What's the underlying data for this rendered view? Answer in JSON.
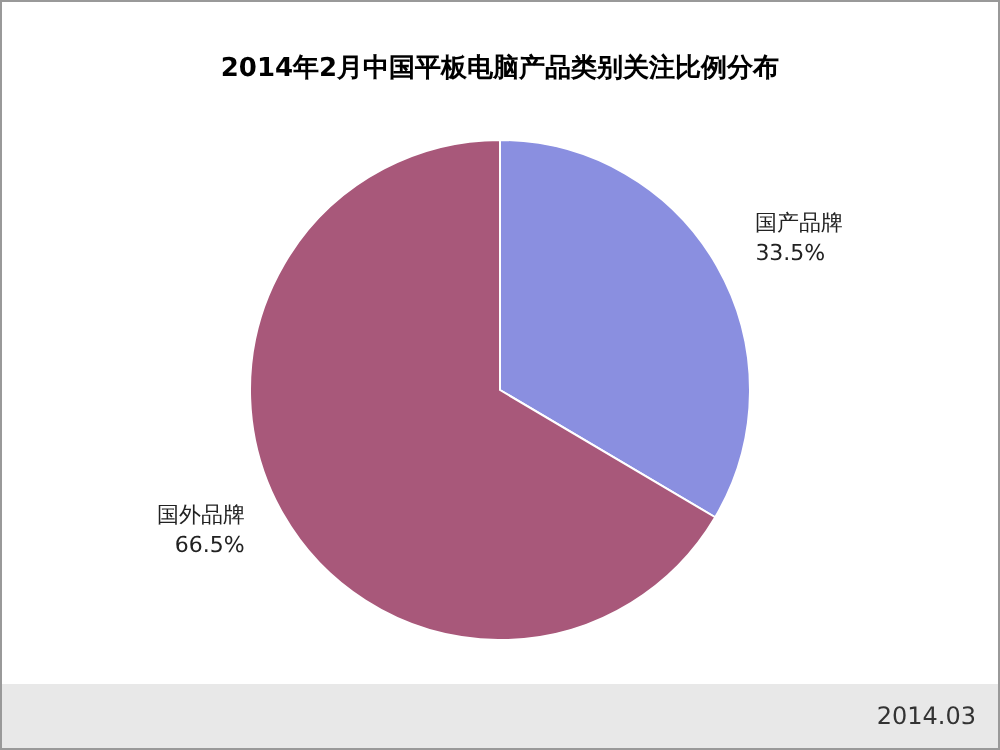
{
  "chart_data": {
    "type": "pie",
    "title": "2014年2月中国平板电脑产品类别关注比例分布",
    "categories": [
      "国产品牌",
      "国外品牌"
    ],
    "values": [
      33.5,
      66.5
    ],
    "value_labels": [
      "33.5%",
      "66.5%"
    ],
    "colors": [
      "#8a8fe0",
      "#a8587a"
    ],
    "annotations": [
      "2014.03"
    ]
  }
}
